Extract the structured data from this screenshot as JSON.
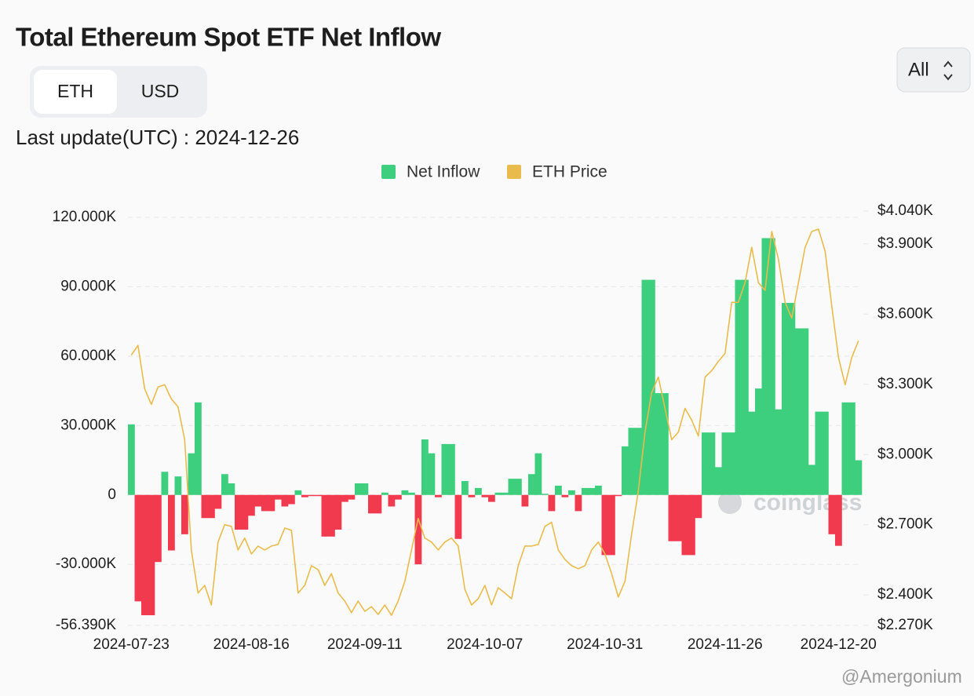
{
  "chart_data": {
    "type": "bar-line",
    "title": "Total Ethereum Spot ETF Net Inflow",
    "categories": [
      "2024-07-23",
      null,
      null,
      null,
      null,
      null,
      null,
      null,
      null,
      null,
      null,
      null,
      null,
      null,
      null,
      null,
      null,
      null,
      "2024-08-16",
      null,
      null,
      null,
      null,
      null,
      null,
      null,
      null,
      null,
      null,
      null,
      null,
      null,
      null,
      null,
      null,
      "2024-09-11",
      null,
      null,
      null,
      null,
      null,
      null,
      null,
      null,
      null,
      null,
      null,
      null,
      null,
      null,
      null,
      null,
      null,
      "2024-10-07",
      null,
      null,
      null,
      null,
      null,
      null,
      null,
      null,
      null,
      null,
      null,
      null,
      null,
      null,
      null,
      null,
      null,
      "2024-10-31",
      null,
      null,
      null,
      null,
      null,
      null,
      null,
      null,
      null,
      null,
      null,
      null,
      null,
      null,
      null,
      null,
      null,
      "2024-11-26",
      null,
      null,
      null,
      null,
      null,
      null,
      null,
      null,
      null,
      null,
      null,
      null,
      null,
      null,
      null,
      null,
      "2024-12-20",
      null,
      null,
      null
    ],
    "series": [
      {
        "name": "Net Inflow",
        "color": "#3ecf7e",
        "negative_color": "#f23a4e",
        "values": [
          30500,
          -46000,
          -52000,
          -52000,
          -29000,
          10000,
          -24000,
          8000,
          -17000,
          18000,
          40000,
          -10000,
          -10000,
          -6000,
          9000,
          5000,
          -15000,
          -15000,
          -9000,
          -5000,
          -7000,
          -7000,
          -2000,
          -5000,
          -4000,
          2000,
          -1000,
          -500,
          -500,
          -18000,
          -18000,
          -15000,
          -3000,
          -2000,
          5000,
          5000,
          -8000,
          -8000,
          1000,
          -5000,
          -2000,
          2000,
          1000,
          -30000,
          24000,
          18000,
          -1000,
          22000,
          22000,
          -19000,
          6000,
          -1000,
          3000,
          -1000,
          -3000,
          1000,
          1000,
          7000,
          7000,
          -5000,
          9000,
          18000,
          500,
          -7000,
          4000,
          -1000,
          2000,
          -7000,
          3000,
          3000,
          4000,
          -26000,
          -26000,
          -500,
          21000,
          29000,
          29000,
          93000,
          93000,
          44000,
          44000,
          -20000,
          -20000,
          -26000,
          -26000,
          -10000,
          27000,
          27000,
          12000,
          27000,
          27000,
          93000,
          93000,
          36000,
          46000,
          111000,
          111000,
          37000,
          83000,
          83000,
          72000,
          72000,
          13000,
          36000,
          36000,
          -17000,
          -22000,
          40000,
          40000,
          15000
        ]
      },
      {
        "name": "ETH Price",
        "color": "#e9bb4c",
        "axis": "y2",
        "values": [
          3425,
          3466,
          3281,
          3214,
          3288,
          3298,
          3237,
          3204,
          3063,
          2592,
          2408,
          2441,
          2357,
          2626,
          2700,
          2693,
          2592,
          2643,
          2575,
          2609,
          2592,
          2609,
          2616,
          2686,
          2676,
          2408,
          2441,
          2525,
          2508,
          2441,
          2491,
          2408,
          2374,
          2324,
          2374,
          2330,
          2350,
          2317,
          2357,
          2313,
          2374,
          2458,
          2592,
          2727,
          2643,
          2626,
          2592,
          2626,
          2643,
          2609,
          2424,
          2357,
          2384,
          2441,
          2357,
          2431,
          2408,
          2384,
          2525,
          2609,
          2609,
          2616,
          2693,
          2710,
          2592,
          2552,
          2525,
          2512,
          2525,
          2592,
          2626,
          2575,
          2491,
          2391,
          2458,
          2660,
          2844,
          3096,
          3264,
          3331,
          3197,
          3063,
          3096,
          3197,
          3147,
          3079,
          3331,
          3358,
          3398,
          3432,
          3650,
          3650,
          3734,
          3885,
          3734,
          3701,
          3953,
          3835,
          3650,
          3583,
          3734,
          3885,
          3953,
          3963,
          3869,
          3634,
          3415,
          3298,
          3415,
          3486
        ]
      }
    ],
    "ylim": [
      -56390,
      122700
    ],
    "yticks": [
      {
        "value": -56390,
        "label": "-56.390K"
      },
      {
        "value": -30000,
        "label": "-30.000K"
      },
      0,
      {
        "value": 30000,
        "label": "30.000K"
      },
      {
        "value": 60000,
        "label": "60.000K"
      },
      {
        "value": 90000,
        "label": "90.000K"
      },
      {
        "value": 120000,
        "label": "120.000K"
      }
    ],
    "y2lim": [
      2270,
      4040
    ],
    "y2ticks": [
      {
        "value": 2270,
        "label": "$2.270K"
      },
      {
        "value": 2400,
        "label": "$2.400K"
      },
      {
        "value": 2700,
        "label": "$2.700K"
      },
      {
        "value": 3000,
        "label": "$3.000K"
      },
      {
        "value": 3300,
        "label": "$3.300K"
      },
      {
        "value": 3600,
        "label": "$3.600K"
      },
      {
        "value": 3900,
        "label": "$3.900K"
      },
      {
        "value": 4040,
        "label": "$4.040K"
      }
    ],
    "grid": true,
    "legend": "top"
  },
  "unit_toggle": [
    "ETH",
    "USD"
  ],
  "range_select": "All",
  "last_update": "Last update(UTC) : 2024-12-26",
  "watermarks": [
    "coinglass",
    "@Amergonium"
  ]
}
